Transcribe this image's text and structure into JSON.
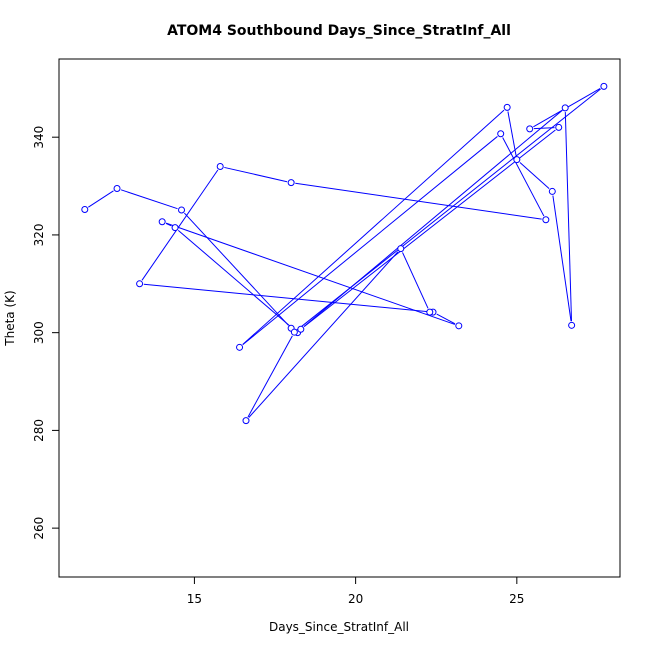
{
  "chart_data": {
    "type": "scatter",
    "title": "ATOM4 Southbound Days_Since_StratInf_All",
    "xlabel": "Days_Since_StratInf_All",
    "ylabel": "Theta (K)",
    "xlim": [
      10.8,
      28.2
    ],
    "ylim": [
      250,
      356
    ],
    "xticks": [
      15,
      20,
      25
    ],
    "yticks": [
      260,
      280,
      300,
      320,
      340
    ],
    "grid": false,
    "legend": "none",
    "line_color": "#0000ff",
    "marker": "open-circle",
    "connected": true,
    "x": [
      11.6,
      12.6,
      14.6,
      18.0,
      18.2,
      14.4,
      14.0,
      23.2,
      22.4,
      13.3,
      15.8,
      18.0,
      25.9,
      24.5,
      16.4,
      24.7,
      25.0,
      26.1,
      26.7,
      26.5,
      18.3,
      26.3,
      25.4,
      27.7,
      18.1,
      16.6,
      21.4,
      22.3
    ],
    "y": [
      325.2,
      329.5,
      325.1,
      300.9,
      300.0,
      321.5,
      322.7,
      301.4,
      304.2,
      310.0,
      334.0,
      330.7,
      323.1,
      340.7,
      297.0,
      346.1,
      335.4,
      328.9,
      301.5,
      346.0,
      300.7,
      342.0,
      341.7,
      350.4,
      300.1,
      282.0,
      317.2,
      304.2
    ]
  }
}
